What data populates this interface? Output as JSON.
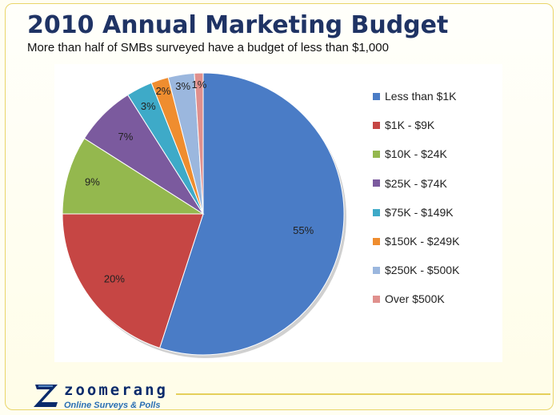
{
  "title": "2010 Annual Marketing Budget",
  "subtitle": "More than half of SMBs surveyed have a budget of less than $1,000",
  "logo": {
    "name": "zoomerang",
    "tagline": "Online Surveys & Polls"
  },
  "chart_data": {
    "type": "pie",
    "title": "2010 Annual Marketing Budget",
    "subtitle": "More than half of SMBs surveyed have a budget of less than $1,000",
    "categories": [
      "Less than $1K",
      "$1K - $9K",
      "$10K - $24K",
      "$25K - $74K",
      "$75K - $149K",
      "$150K - $249K",
      "$250K - $500K",
      "Over $500K"
    ],
    "values": [
      55,
      20,
      9,
      7,
      3,
      2,
      3,
      1
    ],
    "labels": [
      "55%",
      "20%",
      "9%",
      "7%",
      "3%",
      "2%",
      "3%",
      "1%"
    ],
    "colors": [
      "#4a7cc6",
      "#c64644",
      "#94b84e",
      "#7b5a9e",
      "#3eaac8",
      "#ef8d2f",
      "#9bb7de",
      "#e0908d"
    ],
    "legend_position": "right",
    "start": "12 o'clock",
    "direction": "clockwise"
  }
}
